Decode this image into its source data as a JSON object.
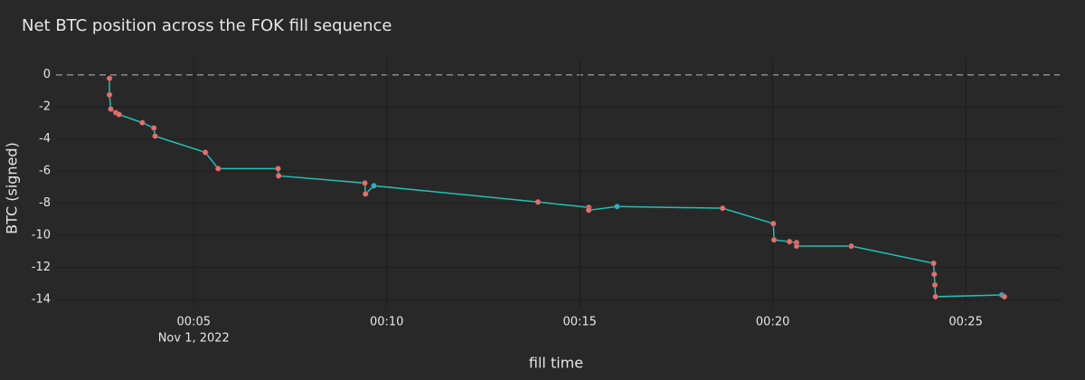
{
  "chart_data": {
    "type": "line",
    "title": "Net BTC position across the FOK fill sequence",
    "x_label": "fill time",
    "y_label": "BTC (signed)",
    "x_date_label": "Nov 1, 2022",
    "x": [
      "2022-11-01T00:02:49",
      "2022-11-01T00:02:49",
      "2022-11-01T00:02:51",
      "2022-11-01T00:02:59",
      "2022-11-01T00:03:04",
      "2022-11-01T00:03:40",
      "2022-11-01T00:03:58",
      "2022-11-01T00:04:00",
      "2022-11-01T00:05:18",
      "2022-11-01T00:05:38",
      "2022-11-01T00:07:11",
      "2022-11-01T00:07:12",
      "2022-11-01T00:09:26",
      "2022-11-01T00:09:27",
      "2022-11-01T00:09:40",
      "2022-11-01T00:13:55",
      "2022-11-01T00:15:14",
      "2022-11-01T00:15:14",
      "2022-11-01T00:15:58",
      "2022-11-01T00:18:42",
      "2022-11-01T00:20:01",
      "2022-11-01T00:20:02",
      "2022-11-01T00:20:26",
      "2022-11-01T00:20:37",
      "2022-11-01T00:20:37",
      "2022-11-01T00:22:02",
      "2022-11-01T00:24:10",
      "2022-11-01T00:24:11",
      "2022-11-01T00:24:12",
      "2022-11-01T00:24:13",
      "2022-11-01T00:25:56",
      "2022-11-01T00:26:00"
    ],
    "series": [
      {
        "color": "#1fc2b4",
        "values": [
          -0.22,
          -1.24,
          -2.13,
          -2.36,
          -2.47,
          -2.98,
          -3.31,
          -3.82,
          -4.83,
          -5.84,
          -5.84,
          -6.29,
          -6.74,
          -7.42,
          -6.91,
          -7.92,
          -8.26,
          -8.43,
          -8.2,
          -8.31,
          -9.27,
          -10.28,
          -10.39,
          -10.45,
          -10.67,
          -10.67,
          -11.74,
          -12.42,
          -13.09,
          -13.82,
          -13.71,
          -13.82
        ],
        "marker_colors": [
          "#ef6a6a",
          "#ef6a6a",
          "#ef6a6a",
          "#ef6a6a",
          "#ef6a6a",
          "#ef6a6a",
          "#ef6a6a",
          "#ef6a6a",
          "#ef6a6a",
          "#ef6a6a",
          "#ef6a6a",
          "#ef6a6a",
          "#ef6a6a",
          "#ef6a6a",
          "#2ab0cf",
          "#ef6a6a",
          "#ef6a6a",
          "#ef6a6a",
          "#2ab0cf",
          "#ef6a6a",
          "#ef6a6a",
          "#ef6a6a",
          "#ef6a6a",
          "#ef6a6a",
          "#ef6a6a",
          "#ef6a6a",
          "#ef6a6a",
          "#ef6a6a",
          "#ef6a6a",
          "#ef6a6a",
          "#2ab0cf",
          "#ef6a6a"
        ]
      }
    ],
    "xlim": [
      "2022-11-01T00:01:26",
      "2022-11-01T00:27:26"
    ],
    "xticks": [
      {
        "value": "2022-11-01T00:05:00",
        "label": "00:05"
      },
      {
        "value": "2022-11-01T00:10:00",
        "label": "00:10"
      },
      {
        "value": "2022-11-01T00:15:00",
        "label": "00:15"
      },
      {
        "value": "2022-11-01T00:20:00",
        "label": "00:20"
      },
      {
        "value": "2022-11-01T00:25:00",
        "label": "00:25"
      }
    ],
    "ylim": [
      -14.5,
      1
    ],
    "yticks": [
      0,
      -2,
      -4,
      -6,
      -8,
      -10,
      -12,
      -14
    ],
    "grid": true,
    "zero_line": true
  }
}
